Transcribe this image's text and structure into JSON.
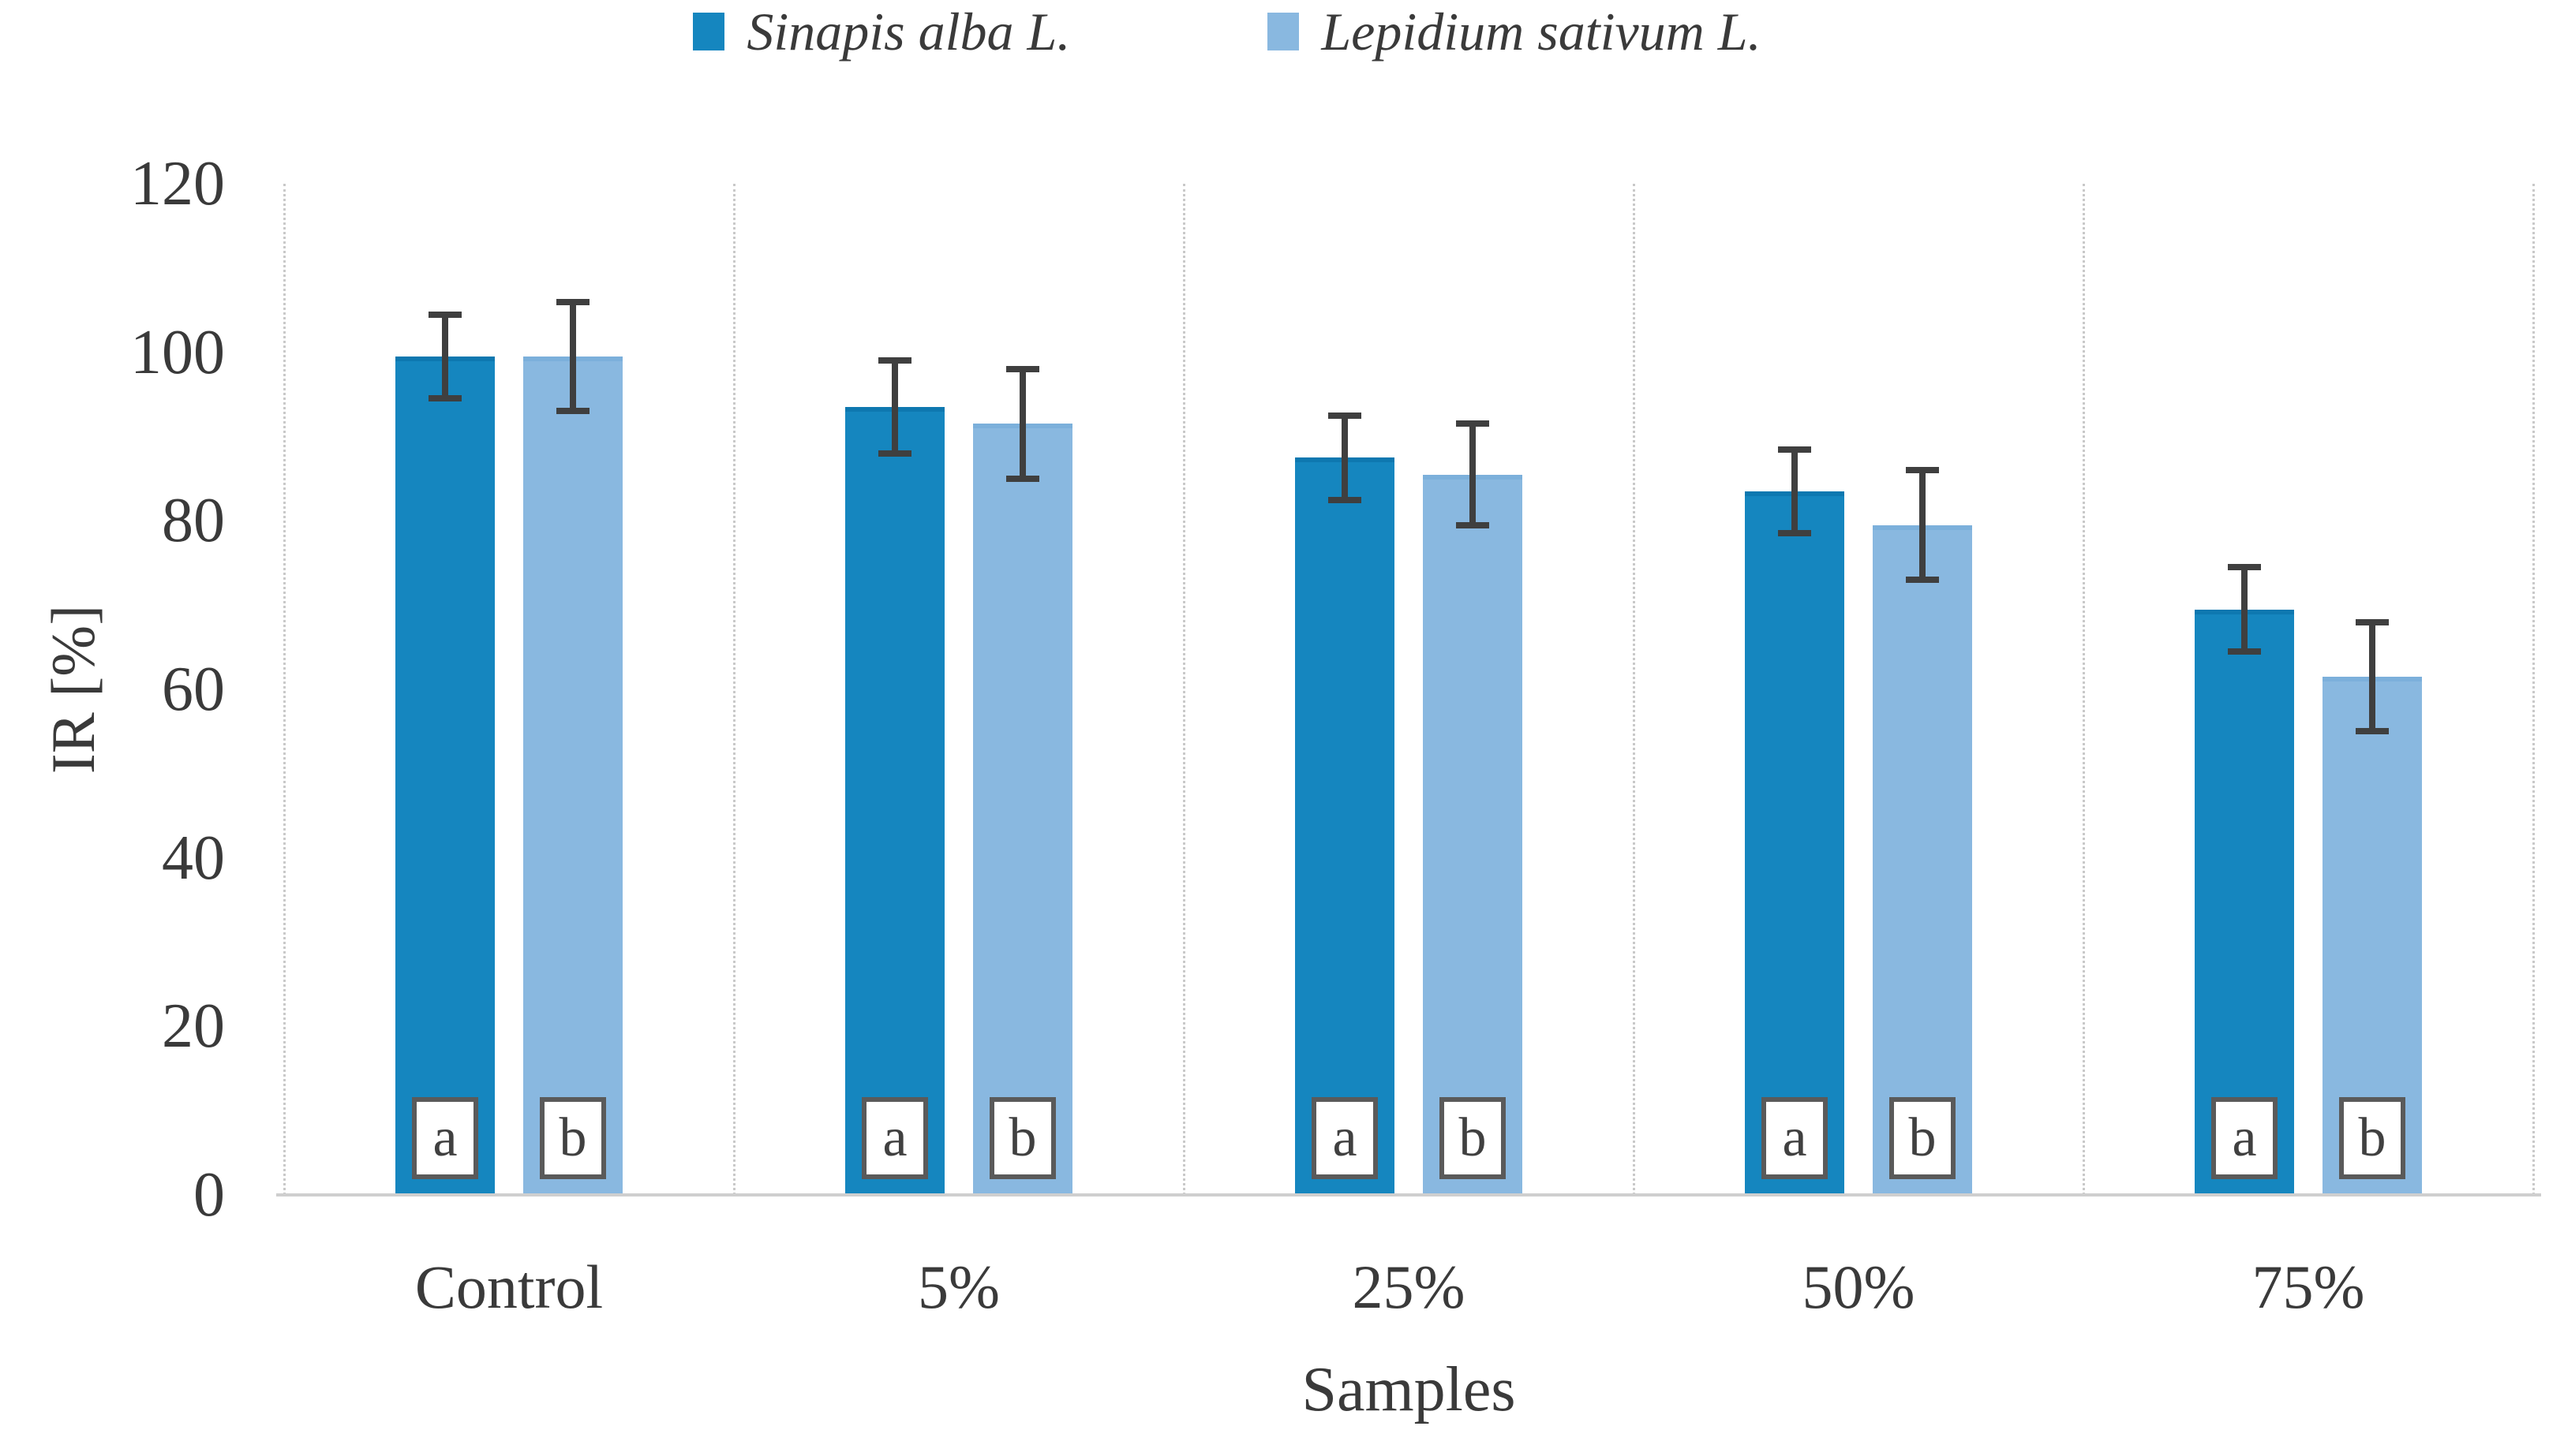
{
  "figure": {
    "background": "#ffffff"
  },
  "chart_data": {
    "type": "bar",
    "title": "",
    "xlabel": "Samples",
    "ylabel": "IR [%]",
    "categories": [
      "Control",
      "5%",
      "25%",
      "50%",
      "75%"
    ],
    "series": [
      {
        "name": "Sinapis alba L.",
        "color": "#1586bf",
        "edge_color": "#0e78b0",
        "values": [
          99.5,
          93.5,
          87.5,
          83.5,
          69.5
        ],
        "errors": [
          5,
          5.5,
          5,
          5,
          5
        ],
        "letters": [
          "a",
          "a",
          "a",
          "a",
          "a"
        ]
      },
      {
        "name": "Lepidium sativum L.",
        "color": "#89b8e0",
        "edge_color": "#7cb0db",
        "values": [
          99.5,
          91.5,
          85.5,
          79.5,
          61.5
        ],
        "errors": [
          6.5,
          6.5,
          6,
          6.5,
          6.5
        ],
        "letters": [
          "b",
          "b",
          "b",
          "b",
          "b"
        ]
      }
    ],
    "ylim": [
      0,
      120
    ],
    "yticks": [
      0,
      20,
      40,
      60,
      80,
      100,
      120
    ],
    "grid": "vertical-category-separators",
    "legend_position": "top",
    "error_bars": "plus-minus, dark gray caps",
    "bar_letter_annotations": "white boxes at bar base"
  },
  "colors": {
    "error_bar": "#3f3f3f",
    "separator_line": "#c9c9c9",
    "baseline": "#cfcfcf",
    "text": "#3a3a3a",
    "letter_box_border": "#5a5a5a",
    "letter_box_bg": "#ffffff"
  }
}
